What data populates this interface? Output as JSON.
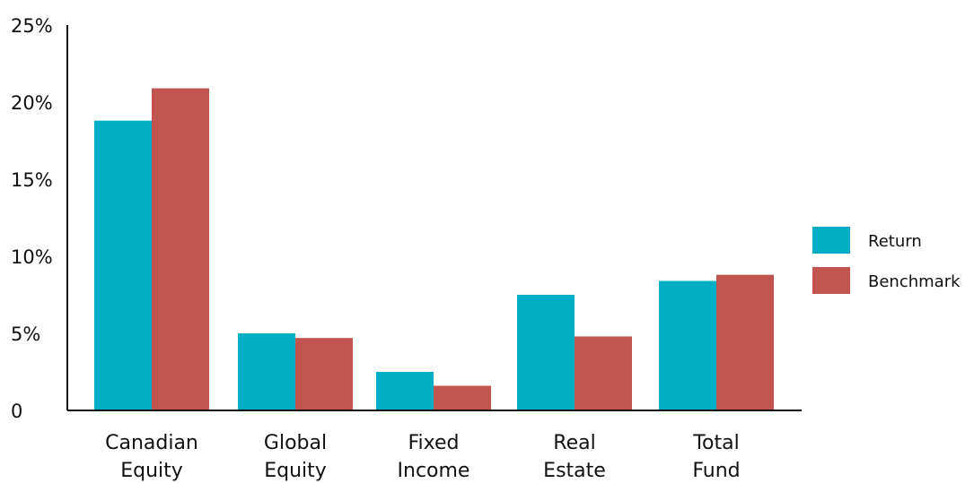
{
  "chart_data": {
    "type": "bar",
    "categories": [
      [
        "Canadian",
        "Equity"
      ],
      [
        "Global",
        "Equity"
      ],
      [
        "Fixed",
        "Income"
      ],
      [
        "Real",
        "Estate"
      ],
      [
        "Total",
        "Fund"
      ]
    ],
    "series": [
      {
        "name": "Return",
        "color": "#00AFC5",
        "values": [
          18.8,
          5.0,
          2.5,
          7.5,
          8.4
        ]
      },
      {
        "name": "Benchmark",
        "color": "#C25450",
        "values": [
          20.9,
          4.7,
          1.6,
          4.8,
          8.8
        ]
      }
    ],
    "yticks": [
      {
        "value": 0,
        "label": "0"
      },
      {
        "value": 5,
        "label": "5%"
      },
      {
        "value": 10,
        "label": "10%"
      },
      {
        "value": 15,
        "label": "15%"
      },
      {
        "value": 20,
        "label": "20%"
      },
      {
        "value": 25,
        "label": "25%"
      }
    ],
    "ylim": [
      0,
      25
    ],
    "grid": false,
    "legend_position": "right"
  }
}
